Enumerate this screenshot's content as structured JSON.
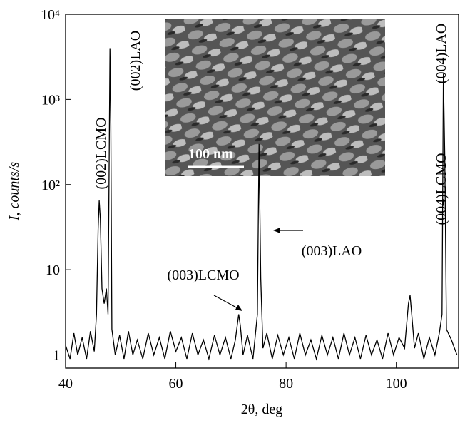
{
  "chart_data": {
    "type": "line",
    "log_y": true,
    "color": "#000000",
    "xlabel": "2θ, deg",
    "ylabel": "I, counts/s",
    "xlim": [
      40,
      111.3
    ],
    "ylim": [
      0.7,
      10000
    ],
    "xticks": [
      40,
      60,
      80,
      100
    ],
    "yticks": [
      1,
      10,
      {
        "value": 100,
        "label": "10²"
      },
      {
        "value": 1000,
        "label": "10³"
      },
      {
        "value": 10000,
        "label": "10⁴"
      }
    ],
    "annotations": [
      "(002)LCMO",
      "(002)LAO",
      "(003)LCMO",
      "(003)LAO",
      "(004)LCMO",
      "(004)LAO"
    ],
    "inset_scale_label": "100 nm",
    "x": [
      40,
      40.8,
      41.5,
      42.2,
      43,
      43.8,
      44.5,
      45.2,
      45.6,
      45.9,
      46.1,
      46.3,
      46.6,
      47,
      47.4,
      47.7,
      47.9,
      48.05,
      48.2,
      48.4,
      49,
      49.8,
      50.6,
      51.4,
      52.2,
      53,
      54,
      55,
      56,
      57,
      58,
      59,
      60,
      61,
      62,
      63,
      64,
      65,
      66,
      67,
      68,
      69,
      70,
      70.8,
      71.4,
      71.7,
      72.2,
      73,
      74,
      74.8,
      75.1,
      75.4,
      75.8,
      76.5,
      77.5,
      78.5,
      79.5,
      80.5,
      81.5,
      82.5,
      83.5,
      84.5,
      85.5,
      86.5,
      87.5,
      88.5,
      89.5,
      90.5,
      91.5,
      92.5,
      93.5,
      94.5,
      95.5,
      96.5,
      97.5,
      98.5,
      99.5,
      100.5,
      101.5,
      102.2,
      102.5,
      102.8,
      103.3,
      104,
      105,
      106,
      107,
      107.8,
      108.3,
      108.55,
      108.8,
      109.1,
      110,
      111
    ],
    "values": [
      1.3,
      0.9,
      1.8,
      1.0,
      1.6,
      0.9,
      1.9,
      1.1,
      3,
      30,
      65,
      40,
      6,
      4,
      6,
      3,
      200,
      4000,
      500,
      2,
      1.0,
      1.7,
      0.9,
      1.9,
      1.0,
      1.5,
      0.9,
      1.8,
      1.0,
      1.6,
      0.9,
      1.9,
      1.1,
      1.6,
      0.9,
      1.8,
      1.0,
      1.5,
      0.9,
      1.7,
      1.0,
      1.6,
      0.9,
      1.5,
      3,
      2.2,
      1.0,
      1.7,
      0.9,
      3,
      300,
      8,
      1.2,
      1.8,
      0.9,
      1.7,
      1.0,
      1.6,
      0.9,
      1.8,
      1.0,
      1.5,
      0.9,
      1.7,
      1.0,
      1.6,
      0.9,
      1.8,
      1.0,
      1.6,
      0.9,
      1.7,
      1.0,
      1.5,
      0.9,
      1.8,
      1.0,
      1.6,
      1.2,
      4,
      5,
      3,
      1.2,
      1.8,
      0.9,
      1.6,
      1.0,
      1.8,
      3,
      2000,
      200,
      2,
      1.5,
      1.0
    ]
  }
}
